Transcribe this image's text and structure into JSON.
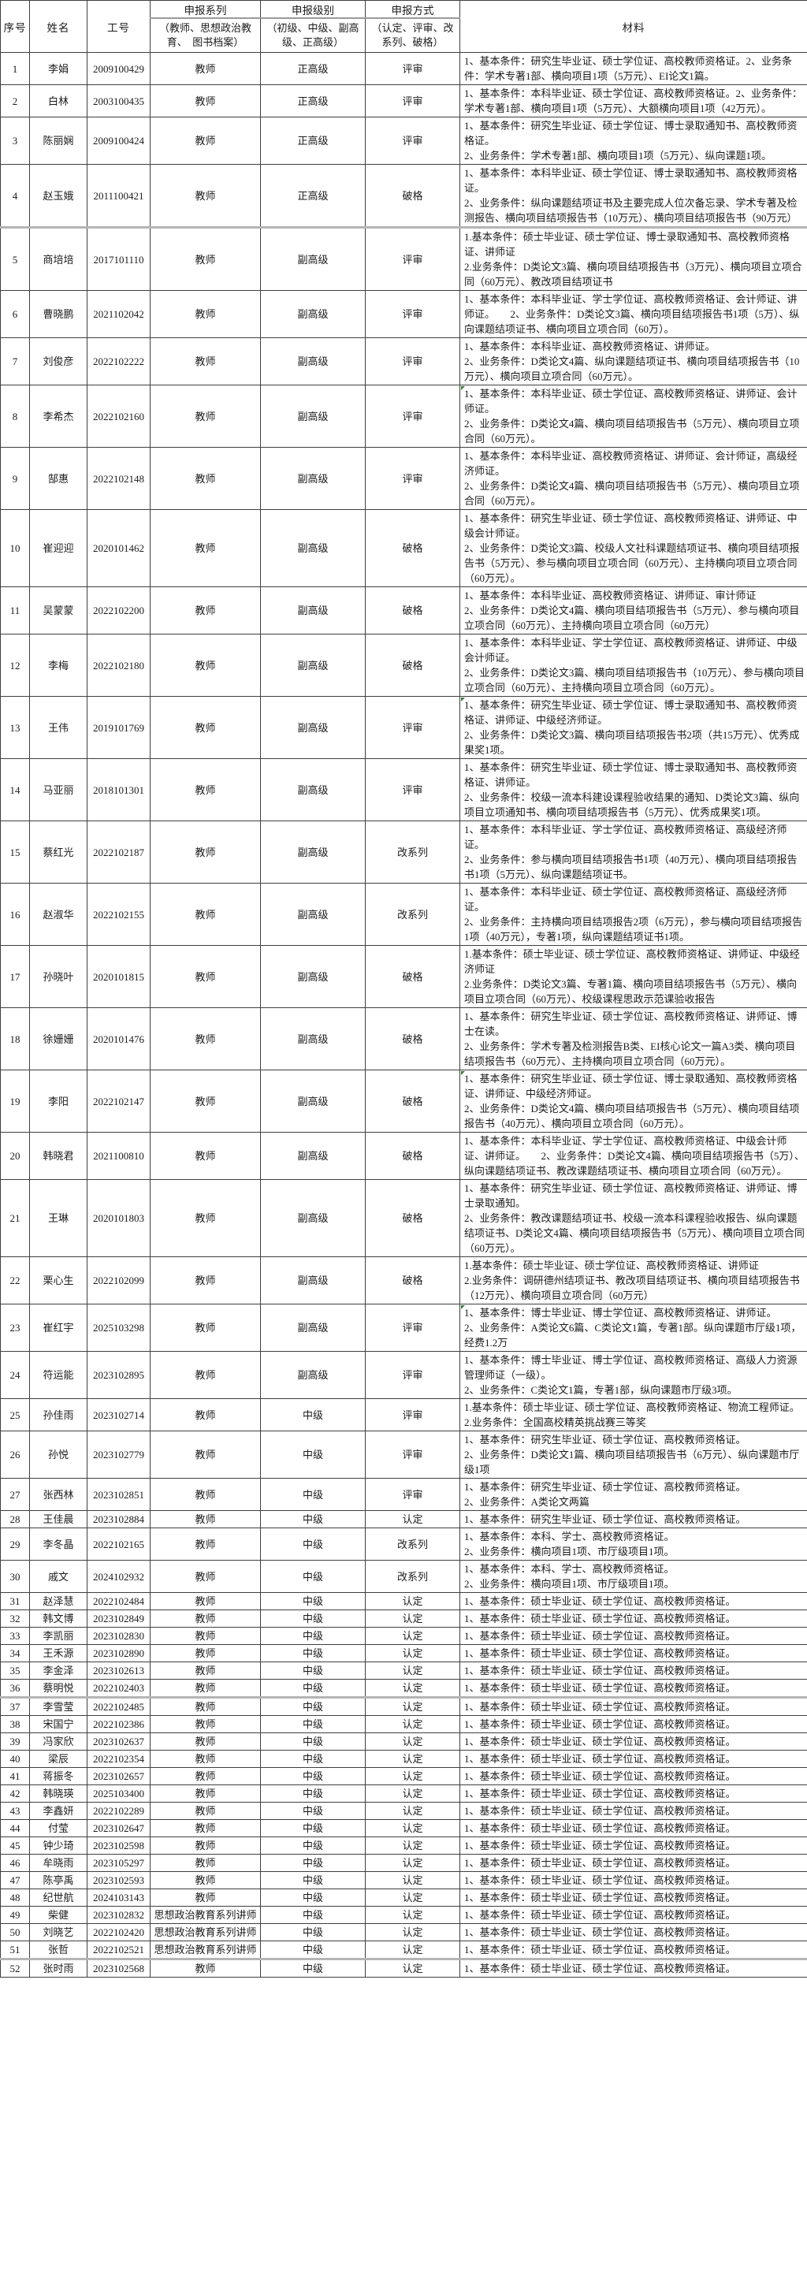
{
  "table": {
    "headers": {
      "col_no": "序号",
      "col_name": "姓名",
      "col_id": "工号",
      "col_series": "申报系列",
      "col_series_note": "（教师、思想政治教育、　图书档案）",
      "col_level": "申报级别",
      "col_level_note": "（初级、中级、副高级、正高级）",
      "col_method": "申报方式",
      "col_method_note": "（认定、评审、改系列、破格）",
      "col_material": "材料"
    },
    "rows": [
      {
        "no": "1",
        "name": "李娟",
        "id": "2009100429",
        "series": "教师",
        "level": "正高级",
        "method": "评审",
        "material": "1、基本条件：研究生毕业证、硕士学位证、高校教师资格证。2、业务条件：学术专著1部、横向项目1项（5万元）、EI论文1篇。"
      },
      {
        "no": "2",
        "name": "白林",
        "id": "2003100435",
        "series": "教师",
        "level": "正高级",
        "method": "评审",
        "material": "1、基本条件：本科毕业证、硕士学位证、高校教师资格证。2、业务条件：学术专著1部、横向项目1项（5万元）、大额横向项目1项（42万元）。"
      },
      {
        "no": "3",
        "name": "陈丽娴",
        "id": "2009100424",
        "series": "教师",
        "level": "正高级",
        "method": "评审",
        "material": "1、基本条件：研究生毕业证、硕士学位证、博士录取通知书、高校教师资格证。\n2、业务条件：学术专著1部、横向项目1项（5万元）、纵向课题1项。"
      },
      {
        "no": "4",
        "name": "赵玉娥",
        "id": "2011100421",
        "series": "教师",
        "level": "正高级",
        "method": "破格",
        "material": "1、基本条件：本科毕业证、硕士学位证、博士录取通知书、高校教师资格证。\n2、业务条件：纵向课题结项证书及主要完成人位次备忘录、学术专著及检测报告、横向项目结项报告书（10万元）、横向项目结项报告书（90万元）"
      },
      {
        "no": "5",
        "name": "商培培",
        "id": "2017101110",
        "series": "教师",
        "level": "副高级",
        "method": "评审",
        "page_break": true,
        "material": "1.基本条件：硕士毕业证、硕士学位证、博士录取通知书、高校教师资格证、讲师证\n2.业务条件：D类论文3篇、横向项目结项报告书（3万元）、横向项目立项合同（60万元）、教改项目结项证书"
      },
      {
        "no": "6",
        "name": "曹晓鹏",
        "id": "2021102042",
        "series": "教师",
        "level": "副高级",
        "method": "评审",
        "material": "1、基本条件：本科毕业证、学士学位证、高校教师资格证、会计师证、讲师证。　　2、业务条件：D类论文3篇、横向项目结项报告书1项（5万）、纵向课题结项证书、横向项目立项合同（60万）。"
      },
      {
        "no": "7",
        "name": "刘俊彦",
        "id": "2022102222",
        "series": "教师",
        "level": "副高级",
        "method": "评审",
        "material": "1、基本条件：本科毕业证、高校教师资格证、讲师证。\n2、业务条件：D类论文4篇、纵向课题结项证书、横向项目结项报告书（10万元）、横向项目立项合同（60万元）。"
      },
      {
        "no": "8",
        "name": "李希杰",
        "id": "2022102160",
        "series": "教师",
        "level": "副高级",
        "method": "评审",
        "note_flag": true,
        "material": "1、基本条件：本科毕业证、硕士学位证、高校教师资格证、讲师证、会计师证。\n2、业务条件：D类论文4篇、横向项目结项报告书（5万元）、横向项目立项合同（60万元）。"
      },
      {
        "no": "9",
        "name": "郜惠",
        "id": "2022102148",
        "series": "教师",
        "level": "副高级",
        "method": "评审",
        "material": "1、基本条件：本科毕业证、高校教师资格证、讲师证、会计师证，高级经济师证。\n2、业务条件：D类论文4篇、横向项目结项报告书（5万元）、横向项目立项合同（60万元）。"
      },
      {
        "no": "10",
        "name": "崔迎迎",
        "id": "2020101462",
        "series": "教师",
        "level": "副高级",
        "method": "破格",
        "material": "1、基本条件：研究生毕业证、硕士学位证、高校教师资格证、讲师证、中级会计师证。\n2、业务条件：D类论文3篇、校级人文社科课题结项证书、横向项目结项报告书（5万元）、参与横向项目立项合同（60万元）、主持横向项目立项合同（60万元）。"
      },
      {
        "no": "11",
        "name": "吴蒙蒙",
        "id": "2022102200",
        "series": "教师",
        "level": "副高级",
        "method": "破格",
        "material": "1、基本条件：本科毕业证、高校教师资格证、讲师证、审计师证\n2、业务条件：D类论文4篇、横向项目结项报告书（5万元）、参与横向项目立项合同（60万元）、主持横向项目立项合同（60万元）"
      },
      {
        "no": "12",
        "name": "李梅",
        "id": "2022102180",
        "series": "教师",
        "level": "副高级",
        "method": "破格",
        "material": "1、基本条件：本科毕业证、学士学位证、高校教师资格证、讲师证、中级会计师证。\n2、业务条件：D类论文3篇、横向项目结项报告书（10万元）、参与横向项目立项合同（60万元）、主持横向项目立项合同（60万元）。"
      },
      {
        "no": "13",
        "name": "王伟",
        "id": "2019101769",
        "series": "教师",
        "level": "副高级",
        "method": "评审",
        "note_flag": true,
        "material": "1、基本条件：研究生毕业证、硕士学位证、博士录取通知书、高校教师资格证、讲师证、中级经济师证。\n2、业务条件：D类论文3篇、横向项目结项报告书2项（共15万元）、优秀成果奖1项。"
      },
      {
        "no": "14",
        "name": "马亚丽",
        "id": "2018101301",
        "series": "教师",
        "level": "副高级",
        "method": "评审",
        "material": "1、基本条件：研究生毕业证、硕士学位证、博士录取通知书、高校教师资格证、讲师证。\n2、业务条件：校级一流本科建设课程验收结果的通知、D类论文3篇、纵向项目立项通知书、横向项目结项报告书（5万元）、优秀成果奖1项。"
      },
      {
        "no": "15",
        "name": "蔡红光",
        "id": "2022102187",
        "series": "教师",
        "level": "副高级",
        "method": "改系列",
        "material": "1、基本条件：本科毕业证、学士学位证、高校教师资格证、高级经济师证。\n2、业务条件：参与横向项目结项报告书1项（40万元）、横向项目结项报告书1项（5万元）、纵向课题结项证书。"
      },
      {
        "no": "16",
        "name": "赵淑华",
        "id": "2022102155",
        "series": "教师",
        "level": "副高级",
        "method": "改系列",
        "material": "1、基本条件：本科毕业证、硕士学位证、高校教师资格证、高级经济师证。\n2、业务条件：主持横向项目结项报告2项（6万元），参与横向项目结项报告1项（40万元），专著1项，纵向课题结项证书1项。"
      },
      {
        "no": "17",
        "name": "孙晓叶",
        "id": "2020101815",
        "series": "教师",
        "level": "副高级",
        "method": "破格",
        "material": "1.基本条件：硕士毕业证、硕士学位证、高校教师资格证、讲师证、中级经济师证\n2.业务条件：D类论文3篇、专著1篇、横向项目结项报告书（5万元）、横向项目立项合同（60万元）、校级课程思政示范课验收报告"
      },
      {
        "no": "18",
        "name": "徐姗姗",
        "id": "2020101476",
        "series": "教师",
        "level": "副高级",
        "method": "破格",
        "material": "1、基本条件：研究生毕业证、硕士学位证、高校教师资格证、讲师证、博士在读。\n2、业务条件：学术专著及检测报告B类、EI核心论文一篇A3类、横向项目结项报告书（60万元）、主持横向项目立项合同（60万元）。"
      },
      {
        "no": "19",
        "name": "李阳",
        "id": "2022102147",
        "series": "教师",
        "level": "副高级",
        "method": "破格",
        "note_flag": true,
        "material": "1、基本条件：研究生毕业证、硕士学位证、博士录取通知、高校教师资格证、讲师证、中级经济师证。\n2、业务条件：D类论文4篇、横向项目结项报告书（5万元）、横向项目结项报告书（40万元）、横向项目立项合同（60万元）。"
      },
      {
        "no": "20",
        "name": "韩晓君",
        "id": "2021100810",
        "series": "教师",
        "level": "副高级",
        "method": "破格",
        "material": "1、基本条件：本科毕业证、学士学位证、高校教师资格证、中级会计师证、讲师证。　　2、业务条件：D类论文4篇、横向项目结项报告书（5万）、纵向课题结项证书、教改课题结项证书、横向项目立项合同（60万元）。"
      },
      {
        "no": "21",
        "name": "王琳",
        "id": "2020101803",
        "series": "教师",
        "level": "副高级",
        "method": "破格",
        "material": "1、基本条件：研究生毕业证、硕士学位证、高校教师资格证、讲师证、博士录取通知。\n2、业务条件：教改课题结项证书、校级一流本科课程验收报告、纵向课题结项证书、D类论文4篇、横向项目结项报告书（5万元）、横向项目立项合同（60万元）。"
      },
      {
        "no": "22",
        "name": "栗心生",
        "id": "2022102099",
        "series": "教师",
        "level": "副高级",
        "method": "破格",
        "material": "1.基本条件：硕士毕业证、硕士学位证、高校教师资格证、讲师证\n2.业务条件：调研德州结项证书、教改项目结项证书、横向项目结项报告书（12万元）、横向项目立项合同（60万元）"
      },
      {
        "no": "23",
        "name": "崔红宇",
        "id": "2025103298",
        "series": "教师",
        "level": "副高级",
        "method": "评审",
        "note_flag": true,
        "material": "1、基本条件：博士毕业证、博士学位证、高校教师资格证、讲师证。\n2、业务条件：A类论文6篇、C类论文1篇，专著1部。纵向课题市厅级1项，经费1.2万"
      },
      {
        "no": "24",
        "name": "符运能",
        "id": "2023102895",
        "series": "教师",
        "level": "副高级",
        "method": "评审",
        "material": "1、基本条件：博士毕业证、博士学位证、高校教师资格证、高级人力资源管理师证（一级）。\n2、业务条件：C类论文1篇，专著1部，纵向课题市厅级3项。"
      },
      {
        "no": "25",
        "name": "孙佳雨",
        "id": "2023102714",
        "series": "教师",
        "level": "中级",
        "method": "评审",
        "material": "1.基本条件：硕士毕业证、硕士学位证、高校教师资格证、物流工程师证。\n2.业务条件：全国高校精英挑战赛三等奖"
      },
      {
        "no": "26",
        "name": "孙悦",
        "id": "2023102779",
        "series": "教师",
        "level": "中级",
        "method": "评审",
        "material": "1、基本条件：研究生毕业证、硕士学位证、高校教师资格证。\n2、业务条件：D类论文1篇、横向项目结项报告书（6万元）、纵向课题市厅级1项"
      },
      {
        "no": "27",
        "name": "张西林",
        "id": "2023102851",
        "series": "教师",
        "level": "中级",
        "method": "评审",
        "material": "1、基本条件：研究生毕业证、硕士学位证、高校教师资格证。\n2、业务条件：A类论文两篇"
      },
      {
        "no": "28",
        "name": "王佳晨",
        "id": "2023102884",
        "series": "教师",
        "level": "中级",
        "method": "认定",
        "material": "1、基本条件：研究生毕业证、硕士学位证、高校教师资格证。"
      },
      {
        "no": "29",
        "name": "李冬晶",
        "id": "2022102165",
        "series": "教师",
        "level": "中级",
        "method": "改系列",
        "material": "1、基本条件：本科、学士、高校教师资格证。\n2、业务条件：横向项目1项、市厅级项目1项。"
      },
      {
        "no": "30",
        "name": "戚文",
        "id": "2024102932",
        "series": "教师",
        "level": "中级",
        "method": "改系列",
        "material": "1、基本条件：本科、学士、高校教师资格证。\n2、业务条件：横向项目1项、市厅级项目1项。"
      },
      {
        "no": "31",
        "name": "赵泽慧",
        "id": "2022102484",
        "series": "教师",
        "level": "中级",
        "method": "认定",
        "material": "1、基本条件：硕士毕业证、硕士学位证、高校教师资格证。"
      },
      {
        "no": "32",
        "name": "韩文博",
        "id": "2023102849",
        "series": "教师",
        "level": "中级",
        "method": "认定",
        "material": "1、基本条件：硕士毕业证、硕士学位证、高校教师资格证。"
      },
      {
        "no": "33",
        "name": "李凯丽",
        "id": "2023102830",
        "series": "教师",
        "level": "中级",
        "method": "认定",
        "material": "1、基本条件：硕士毕业证、硕士学位证、高校教师资格证。"
      },
      {
        "no": "34",
        "name": "王禾源",
        "id": "2023102890",
        "series": "教师",
        "level": "中级",
        "method": "认定",
        "material": "1、基本条件：硕士毕业证、硕士学位证、高校教师资格证。"
      },
      {
        "no": "35",
        "name": "李金泽",
        "id": "2023102613",
        "series": "教师",
        "level": "中级",
        "method": "认定",
        "material": "1、基本条件：硕士毕业证、硕士学位证、高校教师资格证。"
      },
      {
        "no": "36",
        "name": "蔡明悦",
        "id": "2022102403",
        "series": "教师",
        "level": "中级",
        "method": "认定",
        "material": "1、基本条件：硕士毕业证、硕士学位证、高校教师资格证。"
      },
      {
        "no": "37",
        "name": "李雪莹",
        "id": "2022102485",
        "series": "教师",
        "level": "中级",
        "method": "认定",
        "page_break": true,
        "material": "1、基本条件：硕士毕业证、硕士学位证、高校教师资格证。"
      },
      {
        "no": "38",
        "name": "宋国宁",
        "id": "2022102386",
        "series": "教师",
        "level": "中级",
        "method": "认定",
        "material": "1、基本条件：硕士毕业证、硕士学位证、高校教师资格证。"
      },
      {
        "no": "39",
        "name": "冯家欣",
        "id": "2023102637",
        "series": "教师",
        "level": "中级",
        "method": "认定",
        "material": "1、基本条件：硕士毕业证、硕士学位证、高校教师资格证。"
      },
      {
        "no": "40",
        "name": "梁辰",
        "id": "2022102354",
        "series": "教师",
        "level": "中级",
        "method": "认定",
        "material": "1、基本条件：硕士毕业证、硕士学位证、高校教师资格证。"
      },
      {
        "no": "41",
        "name": "蒋振冬",
        "id": "2023102657",
        "series": "教师",
        "level": "中级",
        "method": "认定",
        "material": "1、基本条件：硕士毕业证、硕士学位证、高校教师资格证。"
      },
      {
        "no": "42",
        "name": "韩晓瑛",
        "id": "2025103400",
        "series": "教师",
        "level": "中级",
        "method": "认定",
        "material": "1、基本条件：硕士毕业证、硕士学位证、高校教师资格证。"
      },
      {
        "no": "43",
        "name": "李鑫妍",
        "id": "2022102289",
        "series": "教师",
        "level": "中级",
        "method": "认定",
        "material": "1、基本条件：硕士毕业证、硕士学位证、高校教师资格证。"
      },
      {
        "no": "44",
        "name": "付莹",
        "id": "2023102647",
        "series": "教师",
        "level": "中级",
        "method": "认定",
        "material": "1、基本条件：硕士毕业证、硕士学位证、高校教师资格证。"
      },
      {
        "no": "45",
        "name": "钟少琦",
        "id": "2023102598",
        "series": "教师",
        "level": "中级",
        "method": "认定",
        "material": "1、基本条件：硕士毕业证、硕士学位证、高校教师资格证。"
      },
      {
        "no": "46",
        "name": "牟晓雨",
        "id": "2023105297",
        "series": "教师",
        "level": "中级",
        "method": "认定",
        "material": "1、基本条件：硕士毕业证、硕士学位证、高校教师资格证。"
      },
      {
        "no": "47",
        "name": "陈亭禹",
        "id": "2023102593",
        "series": "教师",
        "level": "中级",
        "method": "认定",
        "material": "1、基本条件：硕士毕业证、硕士学位证、高校教师资格证。"
      },
      {
        "no": "48",
        "name": "纪世航",
        "id": "2024103143",
        "series": "教师",
        "level": "中级",
        "method": "认定",
        "material": "1、基本条件：硕士毕业证、硕士学位证、高校教师资格证。"
      },
      {
        "no": "49",
        "name": "柴健",
        "id": "2023102832",
        "series": "思想政治教育系列讲师",
        "level": "中级",
        "method": "认定",
        "material": "1、基本条件：硕士毕业证、硕士学位证、高校教师资格证。"
      },
      {
        "no": "50",
        "name": "刘晓艺",
        "id": "2022102420",
        "series": "思想政治教育系列讲师",
        "level": "中级",
        "method": "认定",
        "material": "1、基本条件：硕士毕业证、硕士学位证、高校教师资格证。"
      },
      {
        "no": "51",
        "name": "张哲",
        "id": "2022102521",
        "series": "思想政治教育系列讲师",
        "level": "中级",
        "method": "认定",
        "material": "1、基本条件：硕士毕业证、硕士学位证、高校教师资格证。"
      },
      {
        "no": "52",
        "name": "张时雨",
        "id": "2023102568",
        "series": "教师",
        "level": "中级",
        "method": "认定",
        "page_break": true,
        "material": "1、基本条件：硕士毕业证、硕士学位证、高校教师资格证。"
      }
    ]
  }
}
